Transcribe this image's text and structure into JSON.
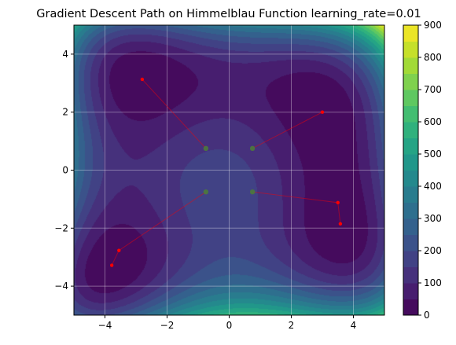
{
  "chart_data": {
    "type": "contour",
    "title": "Gradient Descent Path on Himmelblau Function learning_rate=0.01",
    "xlabel": "",
    "ylabel": "",
    "xlim": [
      -5,
      5
    ],
    "ylim": [
      -5,
      5
    ],
    "x_ticks": [
      -4,
      -2,
      0,
      2,
      4
    ],
    "y_ticks": [
      -4,
      -2,
      0,
      2,
      4
    ],
    "grid": true,
    "colormap": "viridis",
    "colorbar": {
      "ticks": [
        0,
        100,
        200,
        300,
        400,
        500,
        600,
        700,
        800,
        900
      ],
      "range": [
        0,
        900
      ]
    },
    "paths": [
      {
        "points": [
          [
            -0.75,
            0.75
          ],
          [
            -2.8,
            3.13
          ]
        ]
      },
      {
        "points": [
          [
            0.75,
            0.75
          ],
          [
            3.0,
            2.0
          ]
        ]
      },
      {
        "points": [
          [
            -0.75,
            -0.75
          ],
          [
            -3.55,
            -2.77
          ],
          [
            -3.78,
            -3.28
          ]
        ]
      },
      {
        "points": [
          [
            0.75,
            -0.75
          ],
          [
            3.5,
            -1.12
          ],
          [
            3.58,
            -1.85
          ]
        ]
      }
    ],
    "start_marker_color": "#4c7a3b",
    "path_color": "#ff0000"
  }
}
